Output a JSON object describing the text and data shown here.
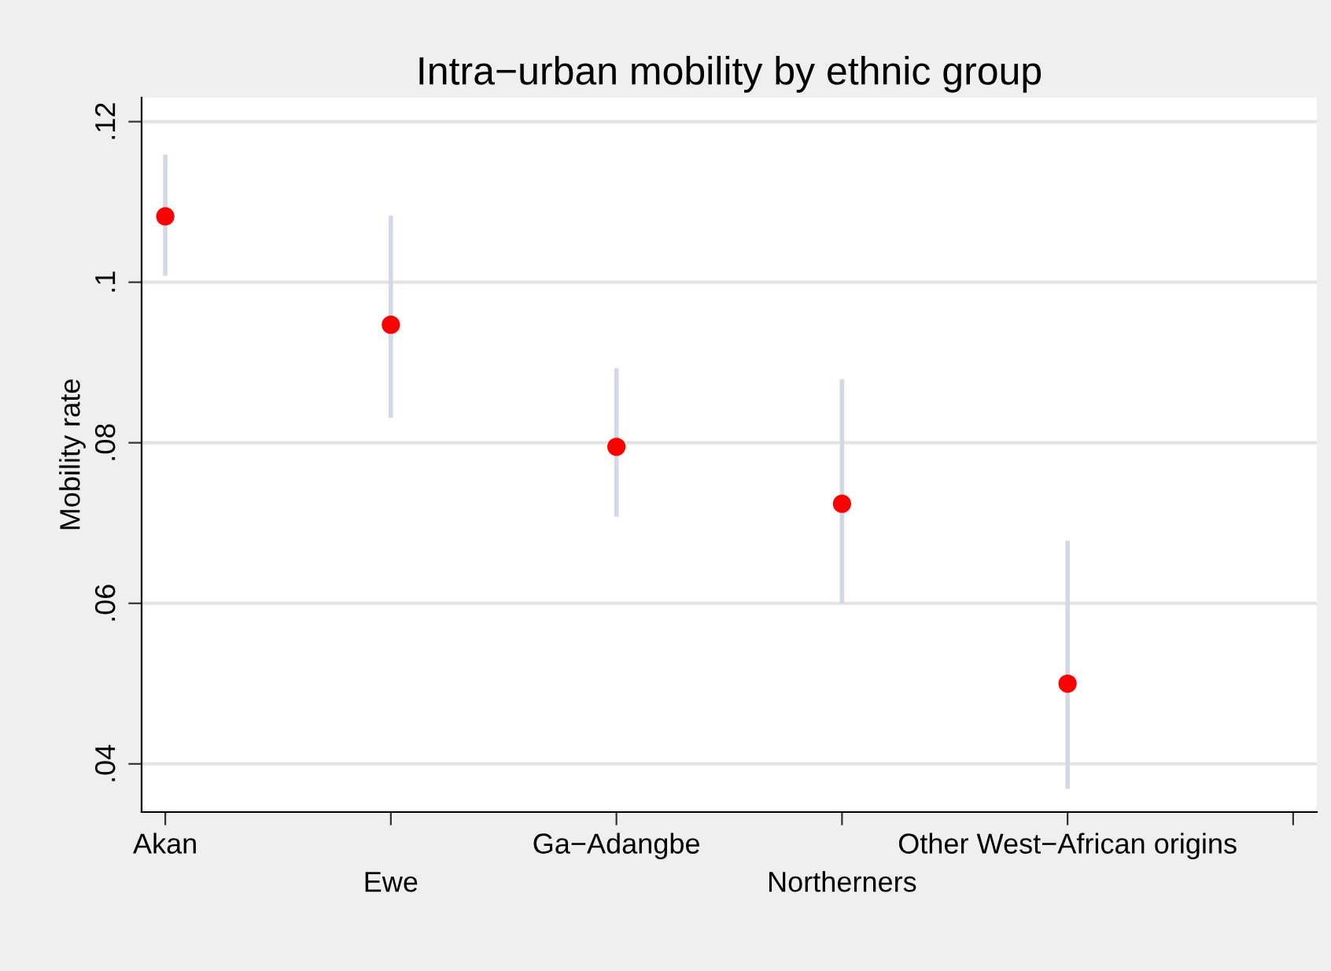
{
  "chart_data": {
    "type": "scatter",
    "title": "Intra−urban mobility by ethnic group",
    "ylabel": "Mobility rate",
    "categories": [
      "Akan",
      "Ewe",
      "Ga−Adangbe",
      "Northerners",
      "Other West−African origins",
      null
    ],
    "series": [
      {
        "color": "#ff0000",
        "values": [
          0.1082,
          0.0947,
          0.0795,
          0.0724,
          0.05,
          null
        ],
        "errors": [
          [
            0.1008,
            0.1159
          ],
          [
            0.0831,
            0.1083
          ],
          [
            0.0708,
            0.0893
          ],
          [
            0.06,
            0.0879
          ],
          [
            0.0369,
            0.0678
          ],
          null
        ]
      }
    ],
    "ylim": [
      0.034,
      0.123
    ],
    "yticks": [
      {
        "value": 0.04,
        "label": ".04"
      },
      {
        "value": 0.06,
        "label": ".06"
      },
      {
        "value": 0.08,
        "label": ".08"
      },
      {
        "value": 0.1,
        "label": ".1"
      },
      {
        "value": 0.12,
        "label": ".12"
      }
    ],
    "grid": "y",
    "marker": "circle"
  }
}
